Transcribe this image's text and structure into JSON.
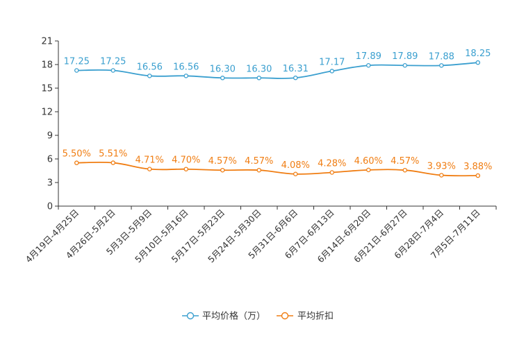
{
  "chart_data": {
    "type": "line",
    "categories": [
      "4月19日-4月25日",
      "4月26日-5月2日",
      "5月3日-5月9日",
      "5月10日-5月16日",
      "5月17日-5月23日",
      "5月24日-5月30日",
      "5月31日-6月6日",
      "6月7日-6月13日",
      "6月14日-6月20日",
      "6月21日-6月27日",
      "6月28日-7月4日",
      "7月5日-7月11日"
    ],
    "ylim": [
      0,
      21
    ],
    "yticks": [
      0,
      3,
      6,
      9,
      12,
      15,
      18,
      21
    ],
    "series": [
      {
        "name": "平均价格（万）",
        "color": "#3a9fcf",
        "values": [
          17.25,
          17.25,
          16.56,
          16.56,
          16.3,
          16.3,
          16.31,
          17.17,
          17.89,
          17.89,
          17.88,
          18.25
        ],
        "labels": [
          "17.25",
          "17.25",
          "16.56",
          "16.56",
          "16.30",
          "16.30",
          "16.31",
          "17.17",
          "17.89",
          "17.89",
          "17.88",
          "18.25"
        ]
      },
      {
        "name": "平均折扣",
        "color": "#f07d12",
        "values": [
          5.5,
          5.51,
          4.71,
          4.7,
          4.57,
          4.57,
          4.08,
          4.28,
          4.6,
          4.57,
          3.93,
          3.88
        ],
        "labels": [
          "5.50%",
          "5.51%",
          "4.71%",
          "4.70%",
          "4.57%",
          "4.57%",
          "4.08%",
          "4.28%",
          "4.60%",
          "4.57%",
          "3.93%",
          "3.88%"
        ]
      }
    ],
    "legend_position": "bottom-center"
  }
}
